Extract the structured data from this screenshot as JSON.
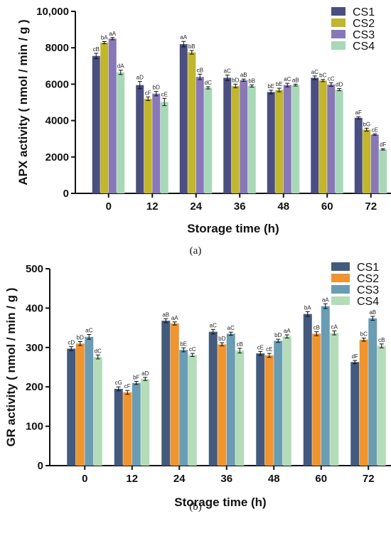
{
  "chart_data": [
    {
      "type": "bar",
      "panel_label": "(a)",
      "categories": [
        "0",
        "12",
        "24",
        "36",
        "48",
        "60",
        "72"
      ],
      "xlabel": "Storage time (h)",
      "ylabel": "APX activity ( nmol / min / g )",
      "ylim": [
        0,
        10000
      ],
      "yticks": [
        "0",
        "2000",
        "4000",
        "6000",
        "8000",
        "10,000"
      ],
      "grid": false,
      "legend_position": "top-right",
      "series": [
        {
          "name": "CS1",
          "color": "#4a4e80",
          "values": [
            7550,
            5950,
            8200,
            6350,
            5570,
            6350,
            4150
          ],
          "errors": [
            150,
            200,
            150,
            150,
            100,
            100,
            60
          ],
          "labels": [
            "cB",
            "aD",
            "aA",
            "aC",
            "bE",
            "aC",
            "aF"
          ]
        },
        {
          "name": "CS2",
          "color": "#c2b62c",
          "values": [
            8280,
            5200,
            7750,
            5900,
            5680,
            6200,
            3500
          ],
          "errors": [
            60,
            100,
            100,
            100,
            100,
            60,
            80
          ],
          "labels": [
            "bA",
            "cF",
            "bB",
            "bD",
            "bE",
            "bC",
            "bG"
          ]
        },
        {
          "name": "CS3",
          "color": "#8878b8",
          "values": [
            8500,
            5480,
            6400,
            6220,
            5950,
            5980,
            3230
          ],
          "errors": [
            60,
            120,
            150,
            60,
            100,
            100,
            40
          ],
          "labels": [
            "aA",
            "bD",
            "cB",
            "aB",
            "aC",
            "cC",
            "cE"
          ]
        },
        {
          "name": "CS4",
          "color": "#a8d8b8",
          "values": [
            6650,
            5020,
            5800,
            5900,
            5950,
            5700,
            2420
          ],
          "errors": [
            120,
            200,
            60,
            60,
            50,
            60,
            40
          ],
          "labels": [
            "dA",
            "cE",
            "dC",
            "bB",
            "aB",
            "dD",
            "dF"
          ]
        }
      ]
    },
    {
      "type": "bar",
      "panel_label": "(b)",
      "categories": [
        "0",
        "12",
        "24",
        "36",
        "48",
        "60",
        "72"
      ],
      "xlabel": "Storage time (h)",
      "ylabel": "GR activity ( nmol / min / g )",
      "ylim": [
        0,
        500
      ],
      "yticks": [
        "0",
        "100",
        "200",
        "300",
        "400",
        "500"
      ],
      "grid": false,
      "legend_position": "top-right",
      "series": [
        {
          "name": "CS1",
          "color": "#435a7c",
          "values": [
            297,
            195,
            368,
            340,
            285,
            385,
            263
          ],
          "errors": [
            5,
            5,
            5,
            6,
            5,
            6,
            4
          ],
          "labels": [
            "cD",
            "cG",
            "aB",
            "aC",
            "cE",
            "bA",
            "dF"
          ]
        },
        {
          "name": "CS2",
          "color": "#f0942e",
          "values": [
            310,
            186,
            361,
            308,
            280,
            335,
            320
          ],
          "errors": [
            5,
            5,
            4,
            4,
            5,
            5,
            4
          ],
          "labels": [
            "bD",
            "cF",
            "aA",
            "bD",
            "cE",
            "cB",
            "bC"
          ]
        },
        {
          "name": "CS3",
          "color": "#6a9cb4",
          "values": [
            327,
            210,
            294,
            335,
            317,
            405,
            374
          ],
          "errors": [
            6,
            4,
            5,
            4,
            4,
            6,
            5
          ],
          "labels": [
            "aC",
            "bF",
            "bE",
            "aC",
            "bD",
            "aA",
            "aB"
          ]
        },
        {
          "name": "CS4",
          "color": "#b4dcb8",
          "values": [
            276,
            220,
            281,
            292,
            328,
            337,
            304
          ],
          "errors": [
            5,
            4,
            4,
            6,
            4,
            5,
            5
          ],
          "labels": [
            "dC",
            "aD",
            "cC",
            "cB",
            "aA",
            "cA",
            "cB"
          ]
        }
      ]
    }
  ]
}
